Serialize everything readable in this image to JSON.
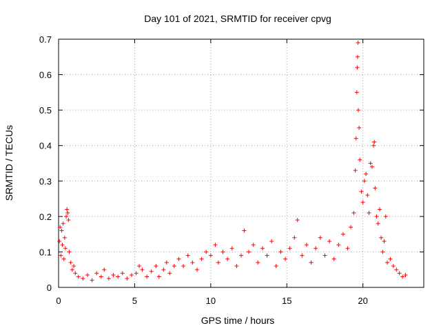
{
  "chart_data": {
    "type": "scatter",
    "title": "Day 101 of 2021, SRMTID for receiver cpvg",
    "xlabel": "GPS time / hours",
    "ylabel": "SRMTID / TECUs",
    "xlim": [
      0,
      24
    ],
    "ylim": [
      0,
      0.7
    ],
    "xticks": [
      0,
      5,
      10,
      15,
      20
    ],
    "yticks": [
      0,
      0.1,
      0.2,
      0.3,
      0.4,
      0.5,
      0.6,
      0.7
    ],
    "grid": true,
    "marker": "+",
    "color": "#ff0000",
    "series": [
      {
        "name": "SRMTID",
        "points": [
          [
            0.05,
            0.13
          ],
          [
            0.1,
            0.17
          ],
          [
            0.15,
            0.09
          ],
          [
            0.2,
            0.16
          ],
          [
            0.25,
            0.12
          ],
          [
            0.3,
            0.18
          ],
          [
            0.35,
            0.08
          ],
          [
            0.4,
            0.14
          ],
          [
            0.45,
            0.11
          ],
          [
            0.5,
            0.2
          ],
          [
            0.55,
            0.22
          ],
          [
            0.6,
            0.21
          ],
          [
            0.65,
            0.19
          ],
          [
            0.7,
            0.1
          ],
          [
            0.8,
            0.07
          ],
          [
            0.9,
            0.05
          ],
          [
            1.0,
            0.06
          ],
          [
            1.1,
            0.04
          ],
          [
            1.3,
            0.03
          ],
          [
            1.6,
            0.025
          ],
          [
            1.9,
            0.035
          ],
          [
            2.2,
            0.02
          ],
          [
            2.5,
            0.04
          ],
          [
            2.8,
            0.03
          ],
          [
            3.0,
            0.05
          ],
          [
            3.3,
            0.025
          ],
          [
            3.6,
            0.035
          ],
          [
            3.9,
            0.03
          ],
          [
            4.2,
            0.04
          ],
          [
            4.5,
            0.025
          ],
          [
            4.8,
            0.035
          ],
          [
            5.1,
            0.04
          ],
          [
            5.3,
            0.06
          ],
          [
            5.5,
            0.05
          ],
          [
            5.8,
            0.03
          ],
          [
            6.1,
            0.045
          ],
          [
            6.4,
            0.06
          ],
          [
            6.6,
            0.03
          ],
          [
            6.9,
            0.05
          ],
          [
            7.1,
            0.07
          ],
          [
            7.3,
            0.04
          ],
          [
            7.6,
            0.06
          ],
          [
            7.9,
            0.08
          ],
          [
            8.2,
            0.06
          ],
          [
            8.5,
            0.09
          ],
          [
            8.8,
            0.07
          ],
          [
            9.1,
            0.05
          ],
          [
            9.4,
            0.08
          ],
          [
            9.7,
            0.1
          ],
          [
            10.0,
            0.09
          ],
          [
            10.3,
            0.12
          ],
          [
            10.5,
            0.07
          ],
          [
            10.8,
            0.1
          ],
          [
            11.1,
            0.08
          ],
          [
            11.4,
            0.11
          ],
          [
            11.7,
            0.06
          ],
          [
            12.0,
            0.09
          ],
          [
            12.2,
            0.16
          ],
          [
            12.5,
            0.1
          ],
          [
            12.8,
            0.12
          ],
          [
            13.1,
            0.07
          ],
          [
            13.4,
            0.11
          ],
          [
            13.7,
            0.09
          ],
          [
            14.0,
            0.13
          ],
          [
            14.3,
            0.06
          ],
          [
            14.6,
            0.1
          ],
          [
            14.9,
            0.08
          ],
          [
            15.2,
            0.11
          ],
          [
            15.5,
            0.14
          ],
          [
            15.7,
            0.19
          ],
          [
            16.0,
            0.09
          ],
          [
            16.3,
            0.12
          ],
          [
            16.6,
            0.07
          ],
          [
            16.9,
            0.11
          ],
          [
            17.2,
            0.14
          ],
          [
            17.5,
            0.09
          ],
          [
            17.8,
            0.13
          ],
          [
            18.1,
            0.08
          ],
          [
            18.4,
            0.12
          ],
          [
            18.7,
            0.15
          ],
          [
            19.0,
            0.11
          ],
          [
            19.2,
            0.17
          ],
          [
            19.4,
            0.21
          ],
          [
            19.5,
            0.33
          ],
          [
            19.55,
            0.42
          ],
          [
            19.6,
            0.55
          ],
          [
            19.63,
            0.62
          ],
          [
            19.65,
            0.65
          ],
          [
            19.68,
            0.69
          ],
          [
            19.7,
            0.5
          ],
          [
            19.75,
            0.45
          ],
          [
            19.8,
            0.36
          ],
          [
            19.9,
            0.27
          ],
          [
            20.0,
            0.24
          ],
          [
            20.1,
            0.3
          ],
          [
            20.2,
            0.32
          ],
          [
            20.3,
            0.26
          ],
          [
            20.4,
            0.21
          ],
          [
            20.5,
            0.35
          ],
          [
            20.6,
            0.34
          ],
          [
            20.7,
            0.4
          ],
          [
            20.75,
            0.41
          ],
          [
            20.8,
            0.28
          ],
          [
            20.9,
            0.2
          ],
          [
            21.0,
            0.18
          ],
          [
            21.1,
            0.22
          ],
          [
            21.2,
            0.14
          ],
          [
            21.3,
            0.1
          ],
          [
            21.4,
            0.13
          ],
          [
            21.5,
            0.2
          ],
          [
            21.6,
            0.07
          ],
          [
            21.8,
            0.08
          ],
          [
            22.0,
            0.06
          ],
          [
            22.2,
            0.05
          ],
          [
            22.4,
            0.04
          ],
          [
            22.6,
            0.03
          ],
          [
            22.8,
            0.035
          ]
        ]
      }
    ]
  }
}
